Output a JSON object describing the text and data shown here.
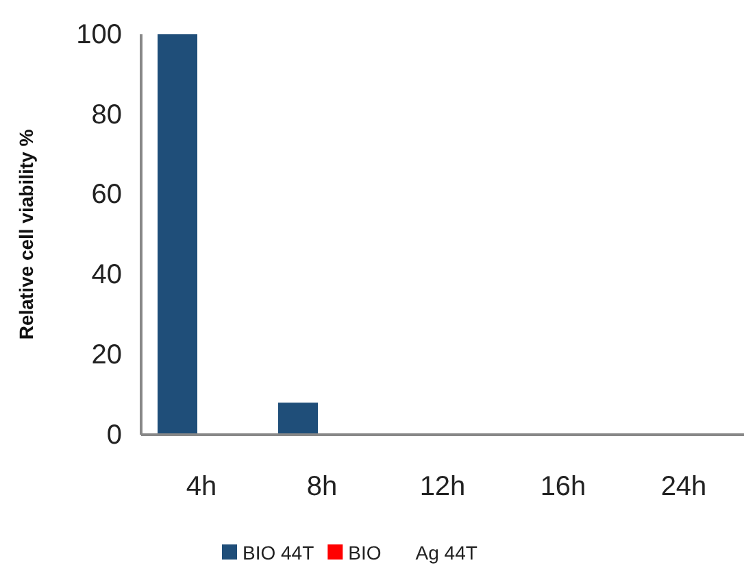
{
  "chart_data": {
    "type": "bar",
    "ylabel": "Relative cell viability %",
    "categories": [
      "4h",
      "8h",
      "12h",
      "16h",
      "24h"
    ],
    "series": [
      {
        "name": "BIO 44T",
        "color": "#1f4e79",
        "values": [
          100,
          8,
          0,
          0,
          0
        ]
      },
      {
        "name": "BIO",
        "color": "#ff0000",
        "values": [
          0,
          0,
          0,
          0,
          0
        ]
      },
      {
        "name": "Ag 44T",
        "values": [
          0,
          0,
          0,
          0,
          0
        ]
      }
    ],
    "ylim": [
      0,
      100
    ],
    "yticks": [
      0,
      20,
      40,
      60,
      80,
      100
    ],
    "grid": false,
    "legend": "bottom"
  }
}
